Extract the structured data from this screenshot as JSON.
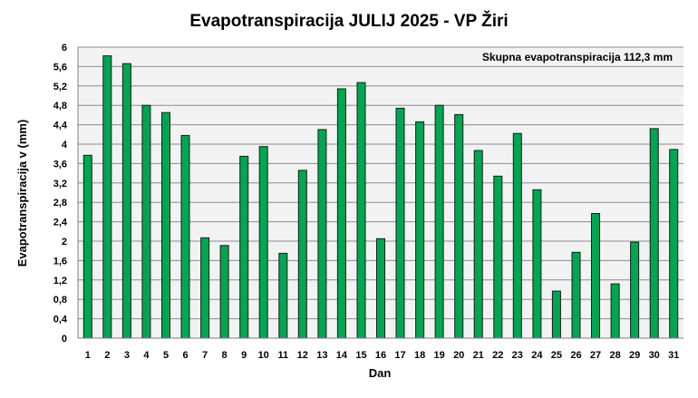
{
  "chart_data": {
    "type": "bar",
    "title": "Evapotranspiracija  JULIJ 2025 - VP Žiri",
    "xlabel": "Dan",
    "ylabel": "Evapotranspiracija v  (mm)",
    "annotation": "Skupna evapotranspiracija 112,3  mm",
    "categories": [
      "1",
      "2",
      "3",
      "4",
      "5",
      "6",
      "7",
      "8",
      "9",
      "10",
      "11",
      "12",
      "13",
      "14",
      "15",
      "16",
      "17",
      "18",
      "19",
      "20",
      "21",
      "22",
      "23",
      "24",
      "25",
      "26",
      "27",
      "28",
      "29",
      "30",
      "31"
    ],
    "values": [
      3.77,
      5.82,
      5.66,
      4.8,
      4.65,
      4.18,
      2.07,
      1.91,
      3.75,
      3.95,
      1.75,
      3.46,
      4.3,
      5.14,
      5.27,
      2.05,
      4.74,
      4.46,
      4.8,
      4.61,
      3.87,
      3.34,
      4.22,
      3.06,
      0.97,
      1.77,
      2.57,
      1.12,
      1.98,
      4.32,
      3.89
    ],
    "y_ticks": [
      "0",
      "0,4",
      "0,8",
      "1,2",
      "1,6",
      "2",
      "2,4",
      "2,8",
      "3,2",
      "3,6",
      "4",
      "4,4",
      "4,8",
      "5,2",
      "5,6",
      "6"
    ],
    "ylim": [
      0,
      6
    ],
    "grid": true,
    "bar_color": "#00a651",
    "plot_background": "#f2f2f2"
  }
}
